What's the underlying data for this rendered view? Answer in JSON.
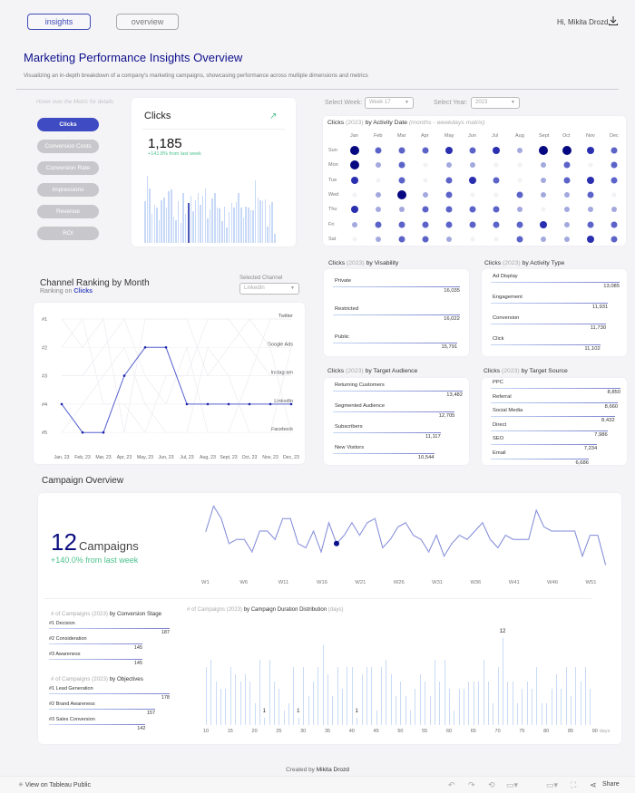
{
  "nav": {
    "tabs": [
      {
        "label": "insights",
        "active": true
      },
      {
        "label": "overview",
        "active": false
      }
    ],
    "greeting": "Hi, Mikita Drozd",
    "download_icon": "download-icon"
  },
  "header": {
    "title": "Marketing Performance Insights Overview",
    "subtitle": "Visualizing an in-depth breakdown of a company's marketing campaigns, showcasing performance across multiple dimensions and metrics"
  },
  "metrics": {
    "hint": "Hover over the Metric for details",
    "buttons": [
      "Clicks",
      "Conversion Costs",
      "Conversion Rate",
      "Impressions",
      "Revenue",
      "ROI"
    ],
    "selected": "Clicks"
  },
  "kpi": {
    "title": "Clicks",
    "value": "1,185",
    "delta": "+141.8% from last week",
    "trend_icon": "trend-up-icon",
    "bars": [
      55,
      88,
      72,
      38,
      50,
      46,
      30,
      56,
      60,
      46,
      68,
      70,
      34,
      30,
      55,
      26,
      66,
      38,
      52,
      62,
      42,
      56,
      66,
      50,
      62,
      72,
      32,
      44,
      58,
      66,
      46,
      45,
      28,
      48,
      20,
      40,
      52,
      46,
      54,
      66,
      46,
      33,
      48,
      46,
      43,
      43,
      82,
      60,
      56,
      55,
      57,
      22,
      50,
      53,
      12
    ],
    "highlight_index": 18
  },
  "filters": {
    "week_label": "Select Week:",
    "week_value": "Week 17",
    "year_label": "Select Year:",
    "year_value": "2023"
  },
  "matrix": {
    "title_metric": "Clicks",
    "title_year": "(2023)",
    "title_rest": "by Activity Date",
    "title_note": "(months - weekdays matrix)",
    "months": [
      "Jan",
      "Feb",
      "Mar",
      "Apr",
      "May",
      "Jun",
      "Jul",
      "Aug",
      "Sept",
      "Oct",
      "Nov",
      "Dec"
    ],
    "days": [
      "Sun",
      "Mon",
      "Tue",
      "Wed",
      "Thu",
      "Fri",
      "Sat"
    ],
    "levels": [
      [
        4,
        2,
        2,
        2,
        3,
        2,
        3,
        1,
        4,
        4,
        3,
        2
      ],
      [
        4,
        1,
        2,
        0,
        1,
        1,
        0,
        0,
        1,
        2,
        0,
        2
      ],
      [
        3,
        0,
        2,
        0,
        2,
        3,
        2,
        0,
        1,
        2,
        3,
        2
      ],
      [
        0,
        1,
        4,
        1,
        2,
        0,
        0,
        2,
        1,
        1,
        2,
        0
      ],
      [
        3,
        1,
        1,
        2,
        2,
        2,
        2,
        1,
        0,
        1,
        1,
        1
      ],
      [
        1,
        2,
        2,
        2,
        2,
        2,
        2,
        2,
        3,
        1,
        2,
        2
      ],
      [
        0,
        1,
        2,
        2,
        1,
        0,
        0,
        2,
        1,
        1,
        3,
        2
      ]
    ]
  },
  "ranking": {
    "title": "Channel Ranking by Month",
    "subtitle_prefix": "Ranking on",
    "subtitle_metric": "Clicks",
    "selected_label": "Selected Channel",
    "selected_value": "LinkedIn",
    "rank_labels": [
      "#1",
      "#2",
      "#3",
      "#4",
      "#5"
    ],
    "channels": [
      "Twitter",
      "Google Ads",
      "Instagram",
      "LinkedIn",
      "Facebook"
    ],
    "months": [
      "Jan, 23",
      "Feb, 23",
      "Mar, 23",
      "Apr, 23",
      "May, 23",
      "Jun, 23",
      "Jul, 23",
      "Aug, 23",
      "Sept, 23",
      "Oct, 23",
      "Nov, 23",
      "Dec, 23"
    ],
    "linkedin_ranks": [
      4,
      5,
      5,
      3,
      2,
      2,
      4,
      4,
      4,
      4,
      4,
      4
    ]
  },
  "visibility": {
    "title_metric": "Clicks",
    "title_year": "(2023)",
    "title_rest": "by Visability",
    "items": [
      {
        "label": "Private",
        "value": "16,035",
        "pct": 1.0
      },
      {
        "label": "Restricted",
        "value": "16,022",
        "pct": 0.999
      },
      {
        "label": "Public",
        "value": "15,791",
        "pct": 0.98
      }
    ]
  },
  "activity_type": {
    "title_metric": "Clicks",
    "title_year": "(2023)",
    "title_rest": "by Activity Type",
    "items": [
      {
        "label": "Ad Display",
        "value": "13,085",
        "pct": 1.0
      },
      {
        "label": "Engagement",
        "value": "11,931",
        "pct": 0.91
      },
      {
        "label": "Conversion",
        "value": "11,730",
        "pct": 0.895
      },
      {
        "label": "Click",
        "value": "11,102",
        "pct": 0.85
      }
    ]
  },
  "audience": {
    "title_metric": "Clicks",
    "title_year": "(2023)",
    "title_rest": "by Target Audience",
    "items": [
      {
        "label": "Returning Customers",
        "value": "13,482",
        "pct": 1.0
      },
      {
        "label": "Segmented Audience",
        "value": "12,705",
        "pct": 0.94
      },
      {
        "label": "Subscribers",
        "value": "11,117",
        "pct": 0.83
      },
      {
        "label": "New Visitors",
        "value": "10,544",
        "pct": 0.78
      }
    ]
  },
  "source": {
    "title_metric": "Clicks",
    "title_year": "(2023)",
    "title_rest": "by Target Source",
    "items": [
      {
        "label": "PPC",
        "value": "8,850",
        "pct": 1.0
      },
      {
        "label": "Referral",
        "value": "8,660",
        "pct": 0.98
      },
      {
        "label": "Social Media",
        "value": "8,432",
        "pct": 0.955
      },
      {
        "label": "Direct",
        "value": "7,986",
        "pct": 0.9
      },
      {
        "label": "SEO",
        "value": "7,234",
        "pct": 0.82
      },
      {
        "label": "Email",
        "value": "6,686",
        "pct": 0.755
      }
    ]
  },
  "campaigns": {
    "section_title": "Campaign Overview",
    "count": "12",
    "unit": "Campaigns",
    "delta": "+140.0% from last week",
    "week_labels": [
      "W1",
      "W6",
      "W11",
      "W16",
      "W21",
      "W26",
      "W31",
      "W36",
      "W41",
      "W46",
      "W51"
    ],
    "weekly": [
      10,
      16,
      13,
      7,
      8,
      8,
      5,
      10,
      10,
      8,
      13,
      13,
      7,
      6,
      10,
      5,
      12,
      7,
      9,
      12,
      9,
      12,
      13,
      6,
      8,
      11,
      12,
      9,
      8,
      5,
      9,
      4,
      7,
      9,
      8,
      10,
      12,
      8,
      6,
      9,
      8,
      8,
      8,
      15,
      11,
      10,
      10,
      10,
      10,
      4,
      9,
      9,
      2
    ],
    "highlight_week": 17
  },
  "conversion_stage": {
    "title_prefix": "# of Campaigns",
    "title_year": "(2023)",
    "title_rest": "by Conversion Stage",
    "items": [
      {
        "label": "#1 Decision",
        "value": "187",
        "pct": 1.0
      },
      {
        "label": "#2 Consideration",
        "value": "145",
        "pct": 0.775
      },
      {
        "label": "#3 Awareness",
        "value": "145",
        "pct": 0.775
      }
    ]
  },
  "objectives": {
    "title_prefix": "# of Campaigns",
    "title_year": "(2023)",
    "title_rest": "by Objectives",
    "items": [
      {
        "label": "#1 Lead Generation",
        "value": "178",
        "pct": 1.0
      },
      {
        "label": "#2 Brand Awareness",
        "value": "157",
        "pct": 0.88
      },
      {
        "label": "#3 Sales Conversion",
        "value": "142",
        "pct": 0.8
      }
    ]
  },
  "chart_data": [
    {
      "type": "bar",
      "title": "# of Campaigns (2023) by Campaign Duration Distribution (days)",
      "xlabel": "days",
      "x_ticks": [
        10,
        15,
        20,
        25,
        30,
        35,
        40,
        45,
        50,
        55,
        60,
        65,
        70,
        75,
        80,
        85,
        90
      ],
      "x": [
        10,
        11,
        12,
        13,
        14,
        15,
        16,
        17,
        18,
        19,
        20,
        21,
        22,
        23,
        24,
        25,
        26,
        27,
        28,
        29,
        30,
        31,
        32,
        33,
        34,
        35,
        36,
        37,
        38,
        39,
        40,
        41,
        42,
        43,
        44,
        45,
        46,
        47,
        48,
        49,
        50,
        51,
        52,
        53,
        54,
        55,
        56,
        57,
        58,
        59,
        60,
        61,
        62,
        63,
        64,
        65,
        66,
        67,
        68,
        69,
        70,
        71,
        72,
        73,
        74,
        75,
        76,
        77,
        78,
        79,
        80,
        81,
        82,
        83,
        84,
        85,
        86,
        87,
        88,
        89
      ],
      "values": [
        8,
        9,
        6,
        5,
        5,
        8,
        7,
        6,
        7,
        6,
        3,
        9,
        1,
        9,
        6,
        5,
        2,
        3,
        8,
        1,
        8,
        4,
        6,
        8,
        11,
        7,
        4,
        8,
        5,
        8,
        8,
        1,
        7,
        8,
        8,
        2,
        8,
        9,
        7,
        4,
        6,
        4,
        2,
        5,
        7,
        6,
        4,
        9,
        6,
        9,
        5,
        2,
        5,
        5,
        6,
        6,
        6,
        9,
        6,
        3,
        8,
        12,
        6,
        6,
        3,
        5,
        6,
        5,
        8,
        3,
        3,
        5,
        7,
        5,
        8,
        4,
        8,
        6,
        8,
        5
      ],
      "annotations": [
        {
          "x": 22,
          "label": "1"
        },
        {
          "x": 29,
          "label": "1"
        },
        {
          "x": 41,
          "label": "1"
        },
        {
          "x": 71,
          "label": "12"
        }
      ]
    },
    {
      "type": "line",
      "title": "Campaigns by Week",
      "x_ticks": [
        "W1",
        "W6",
        "W11",
        "W16",
        "W21",
        "W26",
        "W31",
        "W36",
        "W41",
        "W46",
        "W51"
      ]
    }
  ],
  "footer": {
    "credit_prefix": "Created by",
    "credit_name": "Mikita Drozd",
    "view_on": "View on Tableau Public",
    "share": "Share"
  }
}
